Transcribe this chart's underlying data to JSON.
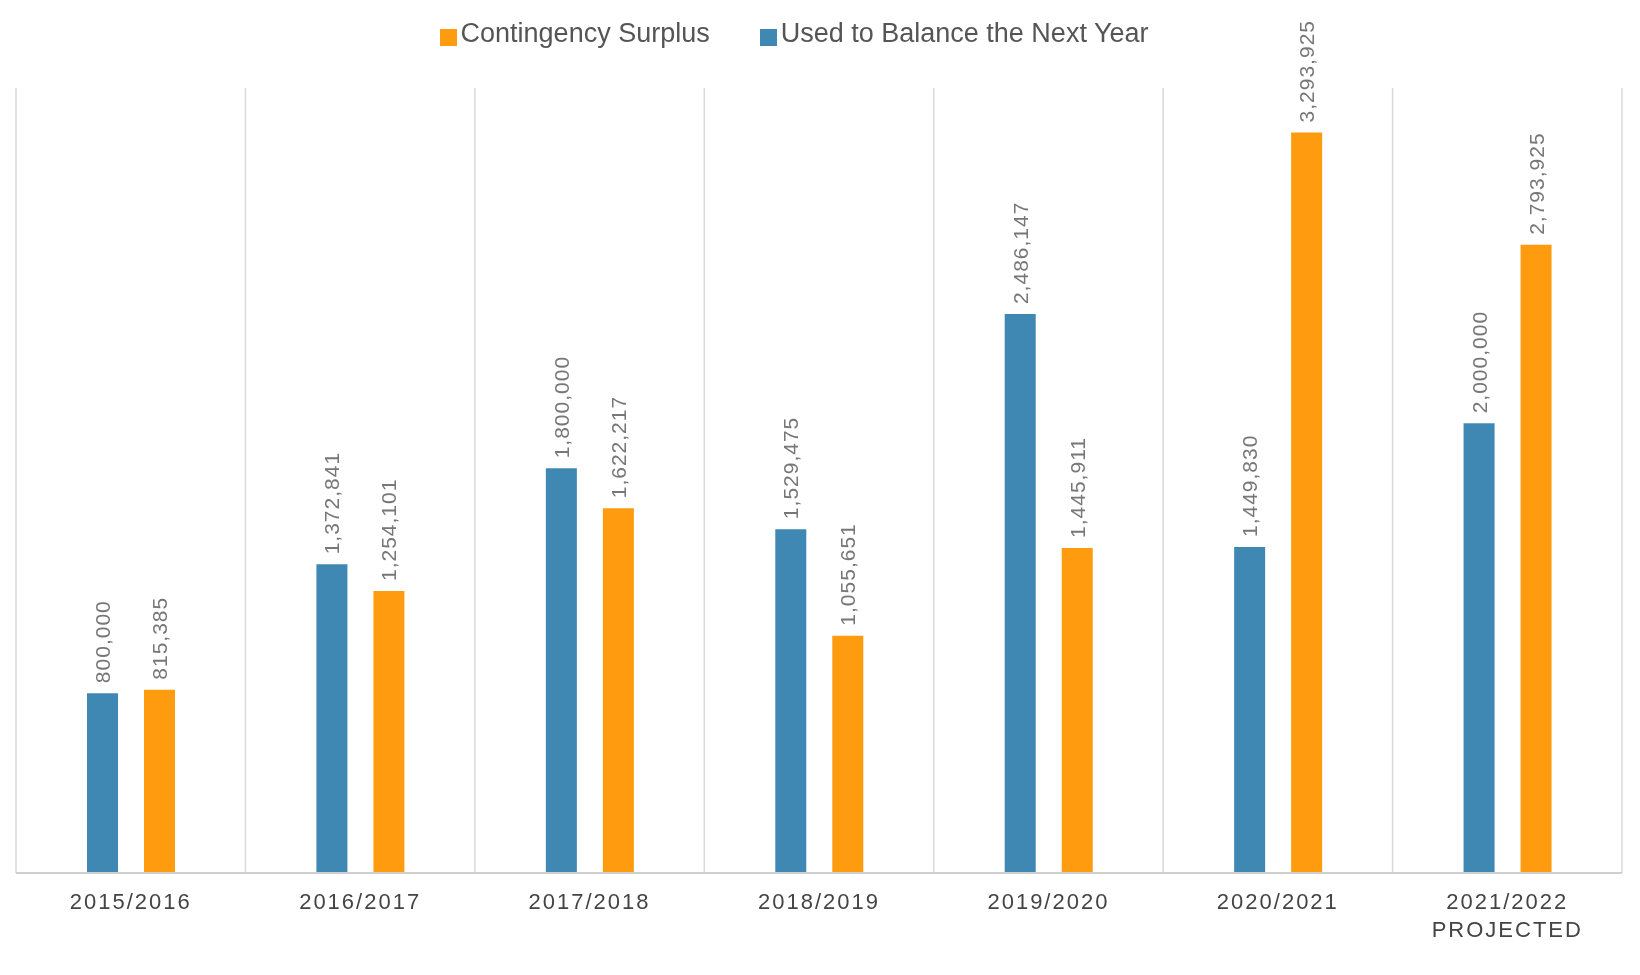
{
  "chart_data": {
    "type": "bar",
    "categories": [
      "2015/2016",
      "2016/2017",
      "2017/2018",
      "2018/2019",
      "2019/2020",
      "2020/2021",
      "2021/2022\nPROJECTED"
    ],
    "series": [
      {
        "name": "Used to Balance the Next Year",
        "color": "#3f88b3",
        "values": [
          800000,
          1372841,
          1800000,
          1529475,
          2486147,
          1449830,
          2000000
        ],
        "value_labels": [
          "800,000",
          "1,372,841",
          "1,800,000",
          "1,529,475",
          "2,486,147",
          "1,449,830",
          "2,000,000"
        ]
      },
      {
        "name": "Contingency Surplus",
        "color": "#ff9b0e",
        "values": [
          815385,
          1254101,
          1622217,
          1055651,
          1445911,
          3293925,
          2793925
        ],
        "value_labels": [
          "815,385",
          "1,254,101",
          "1,622,217",
          "1,055,651",
          "1,445,911",
          "3,293,925",
          "2,793,925"
        ]
      }
    ],
    "grid": "x",
    "legend": "top"
  }
}
